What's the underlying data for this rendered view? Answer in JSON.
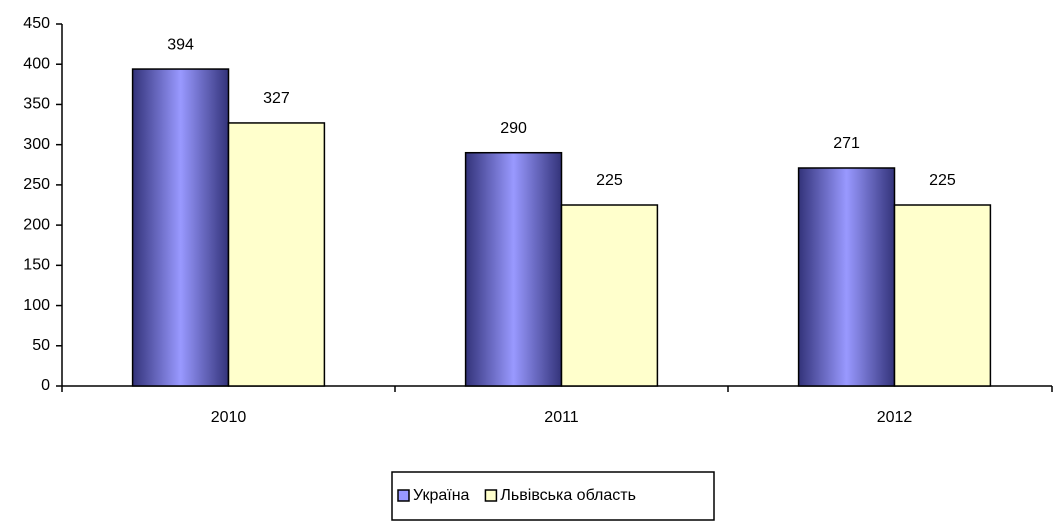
{
  "chart_data": {
    "type": "bar",
    "categories": [
      "2010",
      "2011",
      "2012"
    ],
    "series": [
      {
        "name": "Україна",
        "color": "#9999ff",
        "values": [
          394,
          290,
          271
        ]
      },
      {
        "name": "Львівська область",
        "color": "#ffffcc",
        "values": [
          327,
          225,
          225
        ]
      }
    ],
    "ylim": [
      0,
      450
    ],
    "yticks": [
      0,
      50,
      100,
      150,
      200,
      250,
      300,
      350,
      400,
      450
    ],
    "grid": false,
    "legend": "bottom"
  }
}
